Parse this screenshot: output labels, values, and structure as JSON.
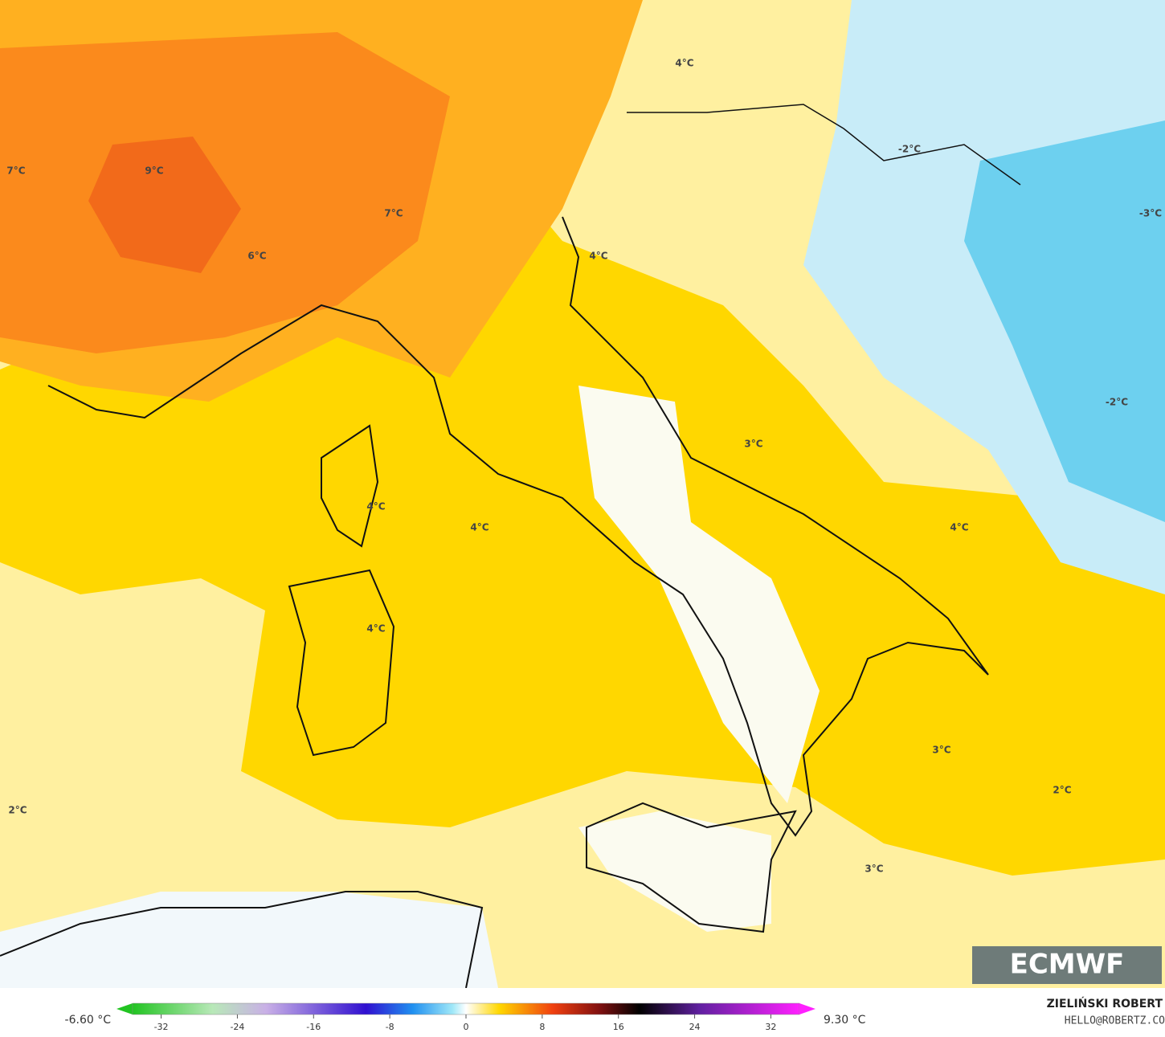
{
  "map": {
    "labels": [
      "7°C",
      "9°C",
      "7°C",
      "6°C",
      "4°C",
      "-2°C",
      "-3°C",
      "4°C",
      "3°C",
      "-2°C",
      "4°C",
      "4°C",
      "4°C",
      "4°C",
      "3°C",
      "2°C",
      "2°C",
      "3°C"
    ],
    "logo": "ECMWF"
  },
  "colorbar": {
    "min_label": "-6.60 °C",
    "max_label": "9.30 °C",
    "lim": [
      -35,
      35
    ],
    "ticks": [
      -32,
      -24,
      -16,
      -8,
      0,
      8,
      16,
      24,
      32
    ]
  },
  "credit": {
    "author": "ZIELIŃSKI ROBERT",
    "email": "HELLO@ROBERTZ.CO"
  }
}
